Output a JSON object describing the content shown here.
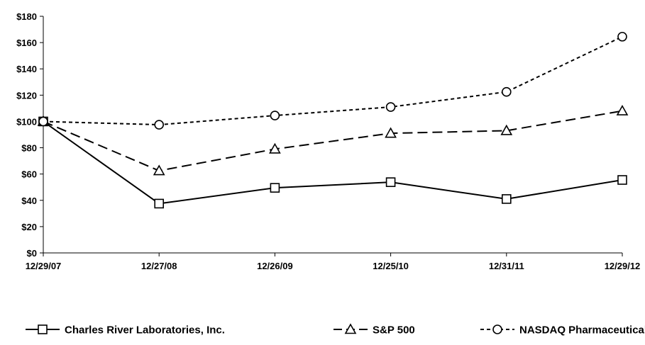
{
  "chart_data": {
    "type": "line",
    "title": "",
    "xlabel": "",
    "ylabel": "",
    "categories": [
      "12/29/07",
      "12/27/08",
      "12/26/09",
      "12/25/10",
      "12/31/11",
      "12/29/12"
    ],
    "ylim": [
      0,
      180
    ],
    "yticks": [
      0,
      20,
      40,
      60,
      80,
      100,
      120,
      140,
      160,
      180
    ],
    "ytick_labels": [
      "$0",
      "$20",
      "$40",
      "$60",
      "$80",
      "$100",
      "$120",
      "$140",
      "$160",
      "$180"
    ],
    "grid": false,
    "legend_position": "bottom",
    "series": [
      {
        "name": "Charles River Laboratories, Inc.",
        "values": [
          100,
          37.5,
          49.5,
          53.8,
          41,
          55.5
        ],
        "marker": "square",
        "line_style": "solid"
      },
      {
        "name": "S&P 500",
        "values": [
          100,
          62.5,
          79,
          91,
          93,
          108
        ],
        "marker": "triangle",
        "line_style": "dashed"
      },
      {
        "name": "NASDAQ Pharmaceutical",
        "values": [
          100,
          97.5,
          104.5,
          111,
          122.5,
          164.5
        ],
        "marker": "circle",
        "line_style": "dotted"
      }
    ]
  }
}
